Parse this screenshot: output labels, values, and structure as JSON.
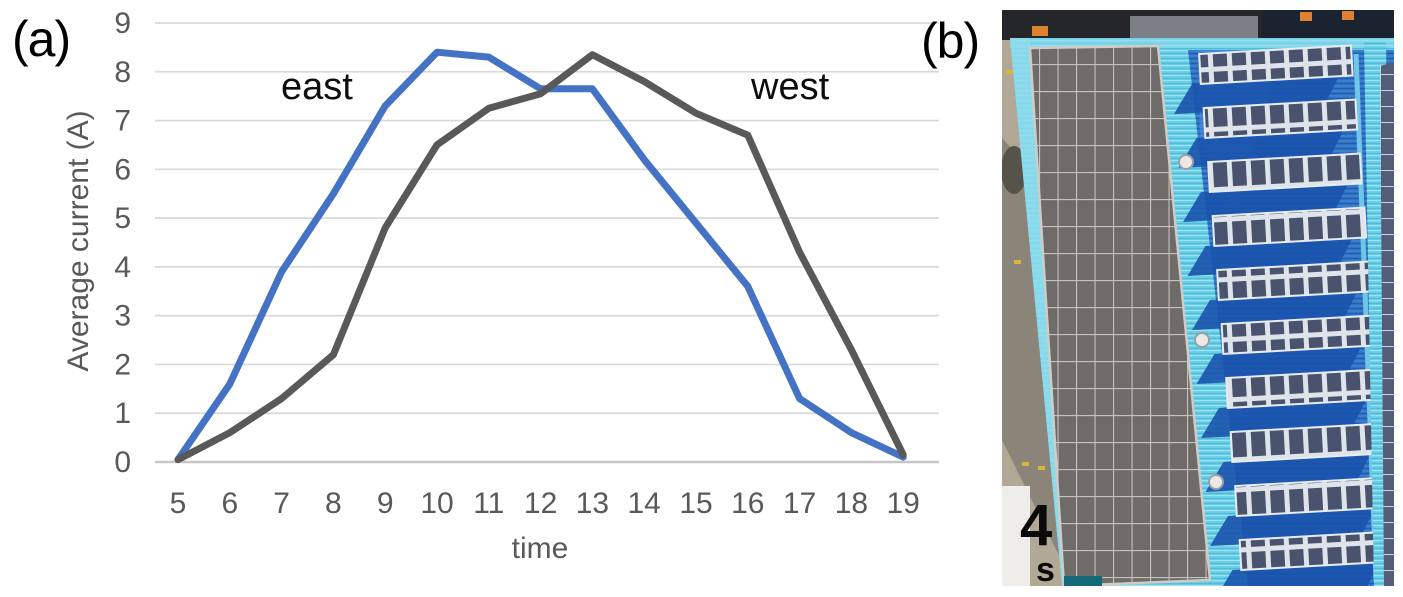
{
  "panel_a": {
    "label": "(a)",
    "chart_data": {
      "type": "line",
      "x": [
        5,
        6,
        7,
        8,
        9,
        10,
        11,
        12,
        13,
        14,
        15,
        16,
        17,
        18,
        19
      ],
      "series": [
        {
          "name": "east",
          "color": "#4472C4",
          "values": [
            0.05,
            1.6,
            3.9,
            5.5,
            7.3,
            8.4,
            8.3,
            7.65,
            7.65,
            6.2,
            4.9,
            3.6,
            1.3,
            0.6,
            0.1
          ]
        },
        {
          "name": "west",
          "color": "#595959",
          "values": [
            0.05,
            0.6,
            1.3,
            2.2,
            4.8,
            6.5,
            7.25,
            7.55,
            8.35,
            7.8,
            7.15,
            6.7,
            4.3,
            2.3,
            0.15
          ]
        }
      ],
      "title": "",
      "xlabel": "time",
      "ylabel": "Average current (A)",
      "ylim": [
        0,
        9
      ],
      "yticks": [
        0,
        1,
        2,
        3,
        4,
        5,
        6,
        7,
        8,
        9
      ],
      "grid": true,
      "legend_position": "inline-annotations",
      "annotations": [
        {
          "text": "east",
          "x": 7.0,
          "y": 7.9
        },
        {
          "text": "west",
          "x": 16.1,
          "y": 7.9
        }
      ],
      "colors": {
        "gridline": "#d9d9d9",
        "baseline": "#c7c7c7",
        "tick_text": "#595959"
      }
    }
  },
  "panel_b": {
    "label": "(b)",
    "annotation_number": "4",
    "annotation_sub": "s"
  }
}
